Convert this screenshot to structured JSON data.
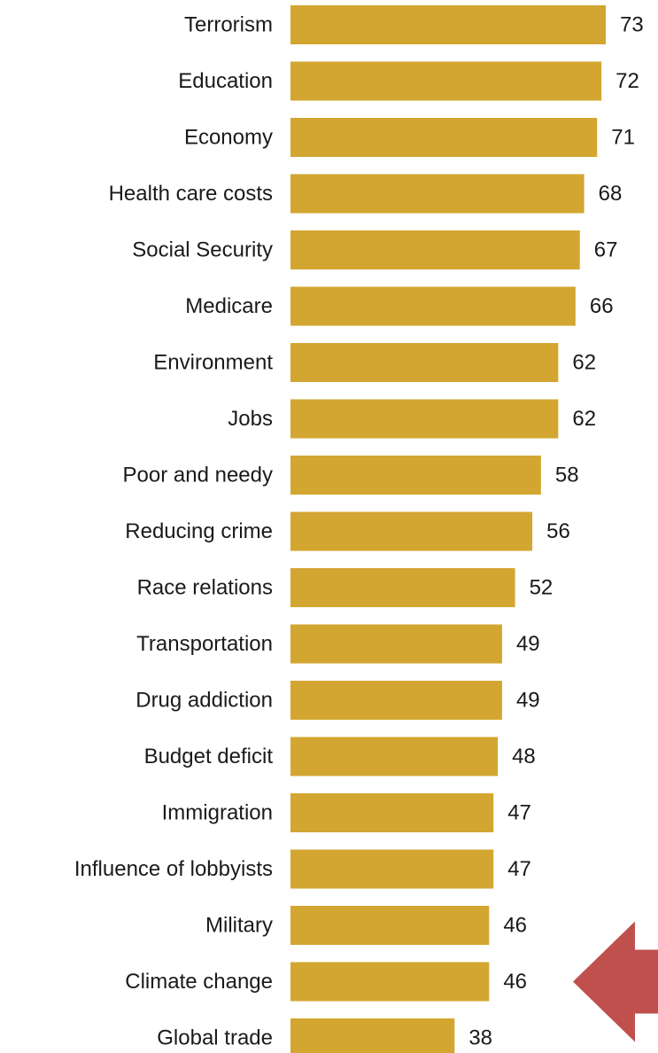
{
  "chart_data": {
    "type": "bar",
    "orientation": "horizontal",
    "categories": [
      "Terrorism",
      "Education",
      "Economy",
      "Health care costs",
      "Social Security",
      "Medicare",
      "Environment",
      "Jobs",
      "Poor and needy",
      "Reducing crime",
      "Race relations",
      "Transportation",
      "Drug addiction",
      "Budget deficit",
      "Immigration",
      "Influence of lobbyists",
      "Military",
      "Climate change",
      "Global trade"
    ],
    "values": [
      73,
      72,
      71,
      68,
      67,
      66,
      62,
      62,
      58,
      56,
      52,
      49,
      49,
      48,
      47,
      47,
      46,
      46,
      38
    ],
    "data_labels": [
      "73",
      "72",
      "71",
      "68",
      "67",
      "66",
      "62",
      "62",
      "58",
      "56",
      "52",
      "49",
      "49",
      "48",
      "47",
      "47",
      "46",
      "46",
      "38"
    ],
    "highlighted_category": "Climate change",
    "xlim": [
      0,
      73
    ],
    "grid": false,
    "legend": "none",
    "bar_color": "#D2A630",
    "annotation_arrow_color": "#C0504D"
  }
}
